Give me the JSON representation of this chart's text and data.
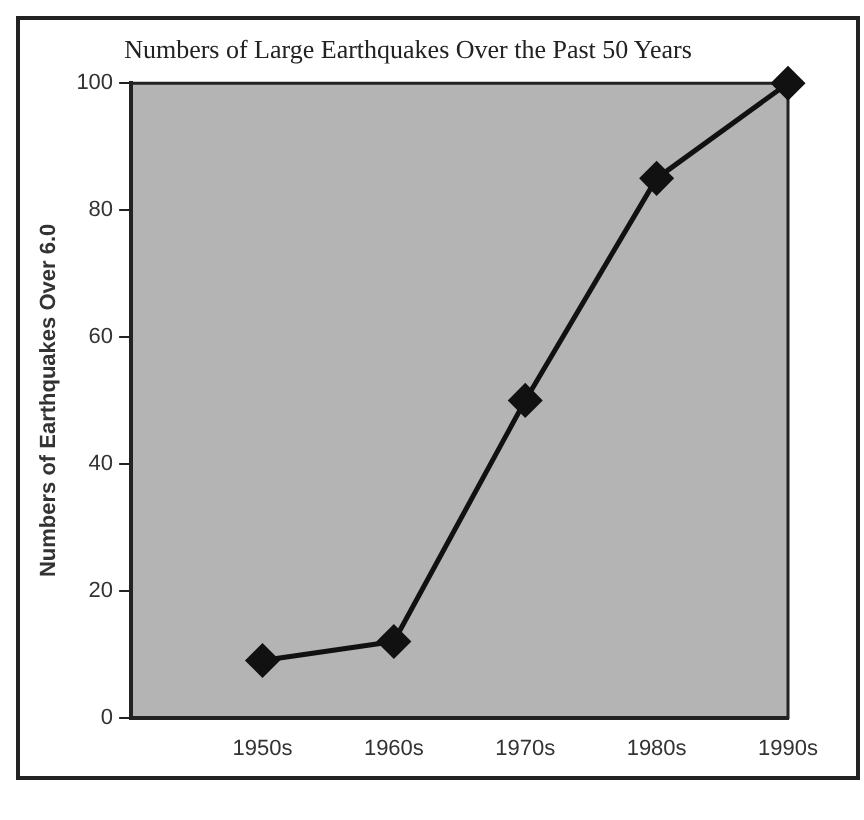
{
  "chart_data": {
    "type": "line",
    "title": "Numbers of Large Earthquakes Over the Past 50 Years",
    "ylabel": "Numbers of Earthquakes Over 6.0",
    "categories": [
      null,
      "1950s",
      "1960s",
      "1970s",
      "1980s",
      "1990s"
    ],
    "series": [
      {
        "color": "#111111",
        "values": [
          null,
          9,
          12,
          50,
          85,
          100
        ]
      }
    ],
    "ylim": [
      0,
      100
    ],
    "yticks": [
      0,
      20,
      40,
      60,
      80,
      100
    ],
    "grid": false,
    "legend": false,
    "marker": "diamond",
    "line_style": "solid"
  }
}
